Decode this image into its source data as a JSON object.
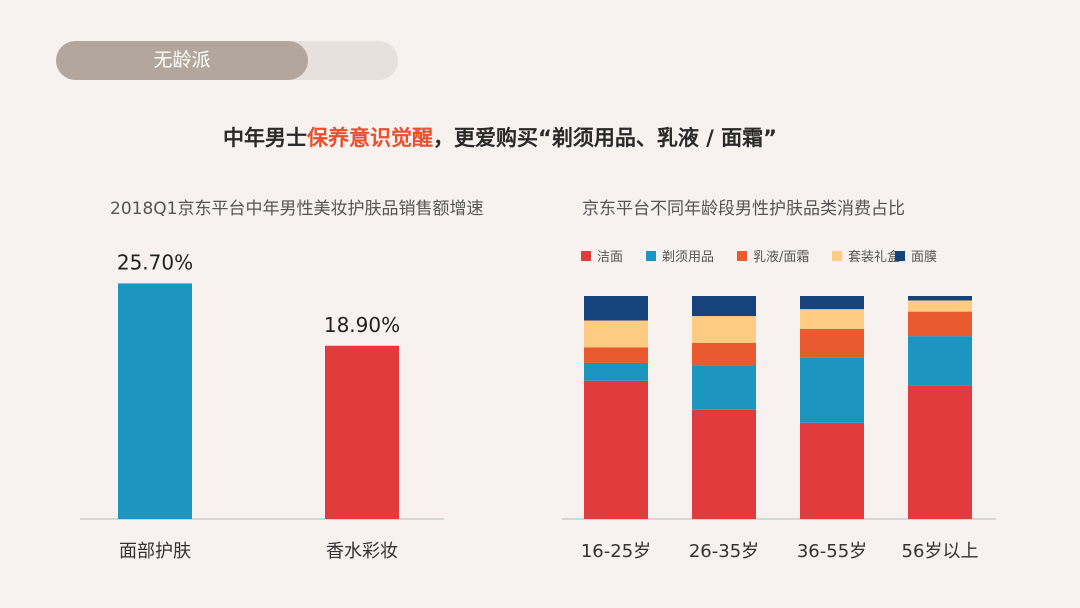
{
  "tag": {
    "label": "无龄派"
  },
  "headline": {
    "part1": "中年男士",
    "highlight": "保养意识觉醒",
    "part2": "，更爱购买“剃须用品、乳液 / 面霜”"
  },
  "colors": {
    "red": "#e23b3e",
    "blue": "#1c95c0",
    "orange": "#e95b2e",
    "yellow": "#fdcb81",
    "navy": "#17437c",
    "accent": "#e9502e"
  },
  "chart_data": [
    {
      "type": "bar",
      "title": "2018Q1京东平台中年男性美妆护肤品销售额增速",
      "categories": [
        "面部护肤",
        "香水彩妆"
      ],
      "values": [
        25.7,
        18.9
      ],
      "value_labels": [
        "25.70%",
        "18.90%"
      ],
      "bar_colors": [
        "#1c95c0",
        "#e23b3e"
      ],
      "ylim": [
        0,
        30
      ],
      "grid": false
    },
    {
      "type": "bar",
      "stacked": true,
      "normalized": true,
      "title": "京东平台不同年龄段男性护肤品类消费占比",
      "categories": [
        "16-25岁",
        "26-35岁",
        "36-55岁",
        "56岁以上"
      ],
      "legend_position": "top",
      "series": [
        {
          "name": "洁面",
          "color": "#e23b3e",
          "values": [
            0.62,
            0.49,
            0.44,
            0.6
          ]
        },
        {
          "name": "剃须用品",
          "color": "#1c95c0",
          "values": [
            0.08,
            0.2,
            0.3,
            0.22
          ]
        },
        {
          "name": "乳液/面霜",
          "color": "#e95b2e",
          "values": [
            0.07,
            0.1,
            0.13,
            0.11
          ]
        },
        {
          "name": "套装礼盒",
          "color": "#fdcb81",
          "values": [
            0.12,
            0.12,
            0.09,
            0.05
          ]
        },
        {
          "name": "面膜",
          "color": "#17437c",
          "values": [
            0.11,
            0.09,
            0.06,
            0.02
          ]
        }
      ],
      "ylim": [
        0,
        1
      ],
      "grid": false
    }
  ]
}
